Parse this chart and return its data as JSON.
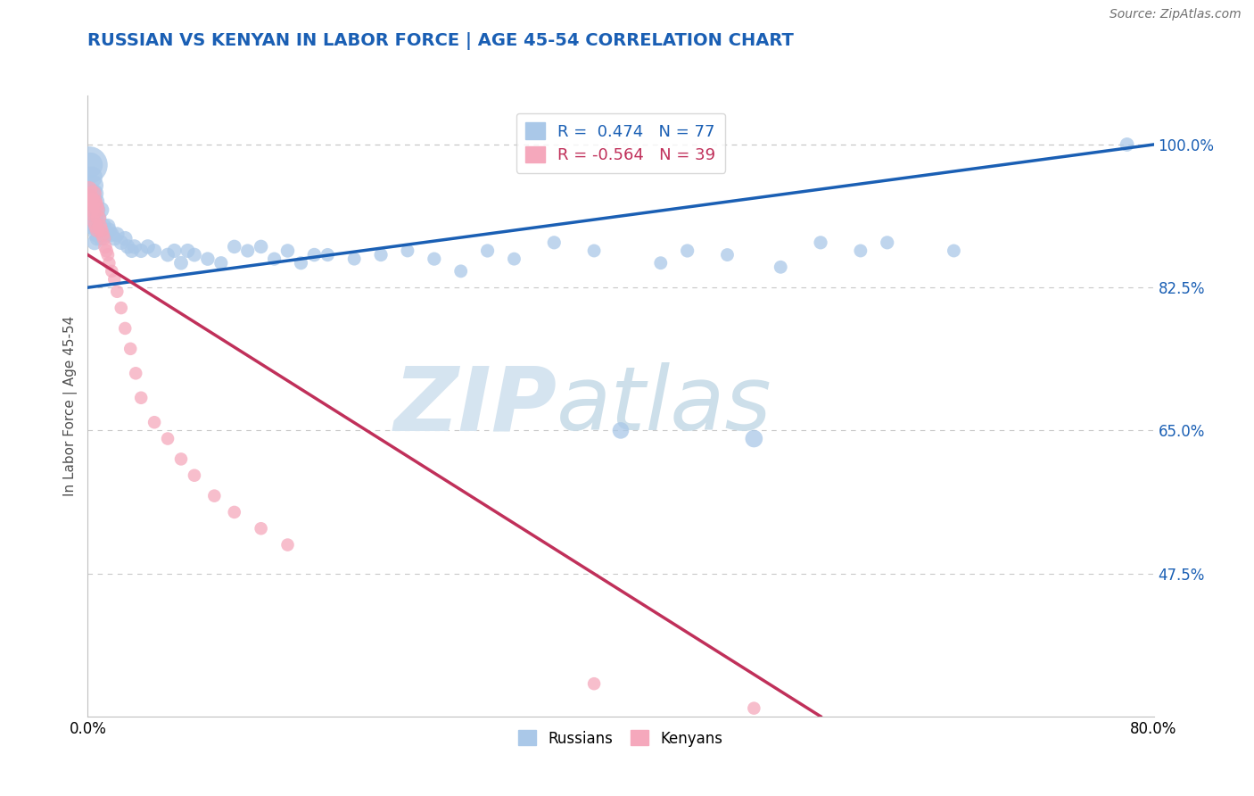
{
  "title": "RUSSIAN VS KENYAN IN LABOR FORCE | AGE 45-54 CORRELATION CHART",
  "source_text": "Source: ZipAtlas.com",
  "ylabel": "In Labor Force | Age 45-54",
  "xlim": [
    0.0,
    0.8
  ],
  "ylim": [
    0.3,
    1.06
  ],
  "yticks": [
    0.475,
    0.65,
    0.825,
    1.0
  ],
  "ytick_labels": [
    "47.5%",
    "65.0%",
    "82.5%",
    "100.0%"
  ],
  "xticks": [
    0.0,
    0.2,
    0.4,
    0.6,
    0.8
  ],
  "xtick_labels": [
    "0.0%",
    "",
    "",
    "",
    "80.0%"
  ],
  "russian_R": 0.474,
  "russian_N": 77,
  "kenyan_R": -0.564,
  "kenyan_N": 39,
  "russian_color": "#aac8e8",
  "kenyan_color": "#f5a8bc",
  "russian_line_color": "#1a5fb4",
  "kenyan_line_color": "#c0305a",
  "watermark_color": "#d5e4f0",
  "background_color": "#ffffff",
  "russian_line": [
    0.0,
    0.825,
    0.8,
    1.0
  ],
  "kenyan_line": [
    0.0,
    0.865,
    0.55,
    0.3
  ],
  "russians_x": [
    0.001,
    0.002,
    0.002,
    0.003,
    0.003,
    0.003,
    0.003,
    0.004,
    0.004,
    0.004,
    0.005,
    0.005,
    0.005,
    0.005,
    0.006,
    0.006,
    0.006,
    0.007,
    0.007,
    0.007,
    0.008,
    0.008,
    0.009,
    0.01,
    0.01,
    0.011,
    0.012,
    0.013,
    0.014,
    0.015,
    0.016,
    0.018,
    0.02,
    0.022,
    0.025,
    0.028,
    0.03,
    0.033,
    0.035,
    0.04,
    0.045,
    0.05,
    0.06,
    0.065,
    0.07,
    0.075,
    0.08,
    0.09,
    0.1,
    0.11,
    0.12,
    0.13,
    0.14,
    0.15,
    0.16,
    0.17,
    0.18,
    0.2,
    0.22,
    0.24,
    0.26,
    0.28,
    0.3,
    0.32,
    0.35,
    0.38,
    0.4,
    0.43,
    0.45,
    0.48,
    0.5,
    0.52,
    0.55,
    0.58,
    0.6,
    0.65,
    0.78
  ],
  "russians_y": [
    0.975,
    0.975,
    0.92,
    0.96,
    0.94,
    0.92,
    0.9,
    0.95,
    0.93,
    0.91,
    0.94,
    0.92,
    0.9,
    0.88,
    0.93,
    0.91,
    0.89,
    0.92,
    0.9,
    0.885,
    0.91,
    0.89,
    0.9,
    0.92,
    0.885,
    0.895,
    0.9,
    0.895,
    0.89,
    0.9,
    0.895,
    0.89,
    0.885,
    0.89,
    0.88,
    0.885,
    0.875,
    0.87,
    0.875,
    0.87,
    0.875,
    0.87,
    0.865,
    0.87,
    0.855,
    0.87,
    0.865,
    0.86,
    0.855,
    0.875,
    0.87,
    0.875,
    0.86,
    0.87,
    0.855,
    0.865,
    0.865,
    0.86,
    0.865,
    0.87,
    0.86,
    0.845,
    0.87,
    0.86,
    0.88,
    0.87,
    0.65,
    0.855,
    0.87,
    0.865,
    0.64,
    0.85,
    0.88,
    0.87,
    0.88,
    0.87,
    1.0
  ],
  "russians_size": [
    900,
    400,
    250,
    300,
    250,
    200,
    180,
    280,
    220,
    180,
    220,
    180,
    160,
    150,
    200,
    170,
    150,
    180,
    160,
    140,
    170,
    150,
    160,
    170,
    140,
    150,
    160,
    150,
    145,
    155,
    150,
    145,
    140,
    145,
    140,
    145,
    140,
    135,
    140,
    135,
    140,
    135,
    130,
    135,
    130,
    135,
    130,
    125,
    120,
    125,
    120,
    125,
    120,
    125,
    120,
    125,
    120,
    115,
    120,
    115,
    120,
    115,
    120,
    115,
    120,
    115,
    180,
    115,
    120,
    115,
    200,
    115,
    120,
    115,
    120,
    115,
    130
  ],
  "kenyans_x": [
    0.001,
    0.002,
    0.003,
    0.003,
    0.004,
    0.004,
    0.005,
    0.005,
    0.006,
    0.006,
    0.007,
    0.007,
    0.008,
    0.009,
    0.01,
    0.011,
    0.012,
    0.013,
    0.014,
    0.015,
    0.016,
    0.018,
    0.02,
    0.022,
    0.025,
    0.028,
    0.032,
    0.036,
    0.04,
    0.05,
    0.06,
    0.07,
    0.08,
    0.095,
    0.11,
    0.13,
    0.15,
    0.38,
    0.5
  ],
  "kenyans_y": [
    0.945,
    0.935,
    0.93,
    0.92,
    0.94,
    0.915,
    0.93,
    0.905,
    0.925,
    0.9,
    0.92,
    0.895,
    0.91,
    0.9,
    0.895,
    0.89,
    0.885,
    0.875,
    0.87,
    0.865,
    0.855,
    0.845,
    0.835,
    0.82,
    0.8,
    0.775,
    0.75,
    0.72,
    0.69,
    0.66,
    0.64,
    0.615,
    0.595,
    0.57,
    0.55,
    0.53,
    0.51,
    0.34,
    0.31
  ],
  "kenyans_size": [
    180,
    180,
    200,
    160,
    180,
    150,
    170,
    145,
    165,
    140,
    160,
    135,
    155,
    145,
    140,
    135,
    130,
    125,
    120,
    115,
    110,
    110,
    110,
    110,
    110,
    110,
    110,
    110,
    110,
    110,
    110,
    110,
    110,
    110,
    110,
    110,
    110,
    110,
    110
  ]
}
